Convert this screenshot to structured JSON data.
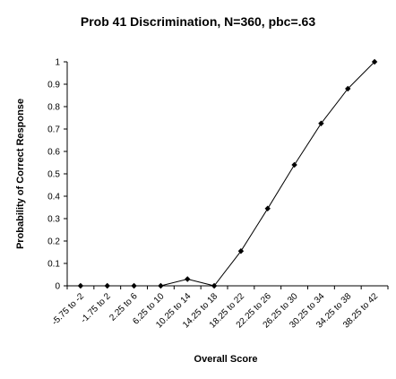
{
  "chart_data": {
    "type": "line",
    "title": "Prob 41 Discrimination, N=360, pbc=.63",
    "xlabel": "Overall Score",
    "ylabel": "Probability of Correct Response",
    "categories": [
      "-5.75 to -2",
      "-1.75 to 2",
      "2.25 to 6",
      "6.25 to 10",
      "10.25 to 14",
      "14.25 to 18",
      "18.25 to 22",
      "22.25 to 26",
      "26.25 to 30",
      "30.25 to 34",
      "34.25 to 38",
      "38.25 to 42"
    ],
    "series": [
      {
        "values": [
          0,
          0,
          0,
          0,
          0.03,
          0,
          0.155,
          0.345,
          0.54,
          0.725,
          0.88,
          1.0
        ]
      }
    ],
    "ylim": [
      0,
      1
    ],
    "yticks": [
      "0",
      "0.1",
      "0.2",
      "0.3",
      "0.4",
      "0.5",
      "0.6",
      "0.7",
      "0.8",
      "0.9",
      "1"
    ],
    "grid": false,
    "legend": "none",
    "line_color": "#000000",
    "marker": "diamond"
  }
}
